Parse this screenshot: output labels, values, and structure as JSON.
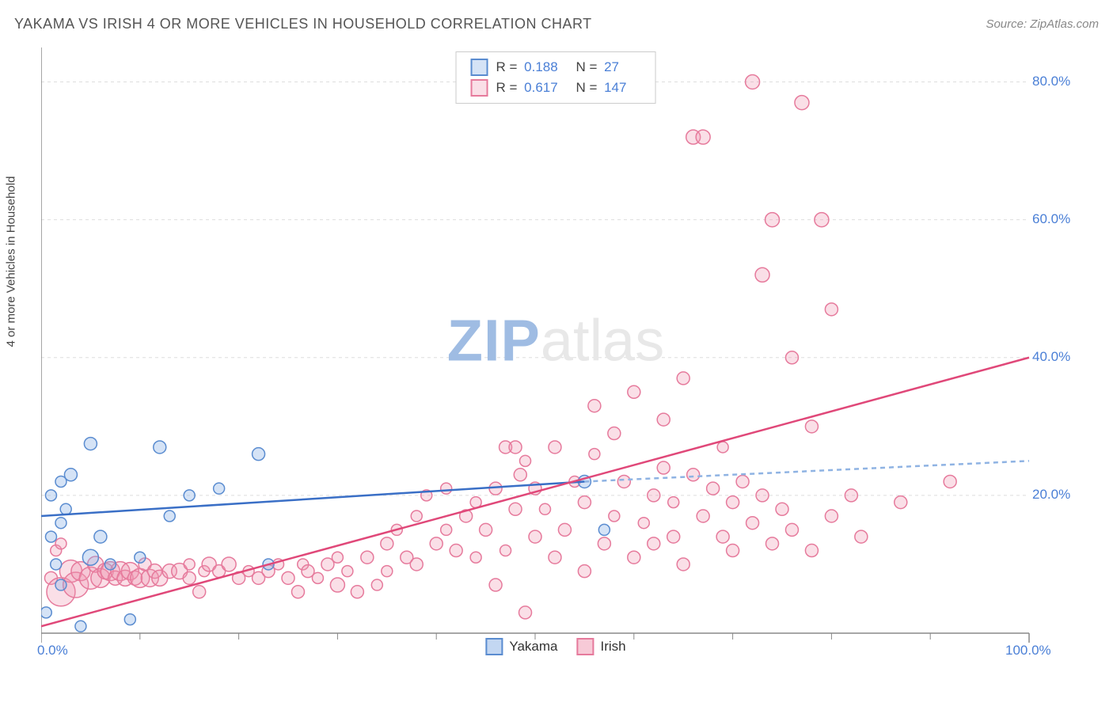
{
  "header": {
    "title": "YAKAMA VS IRISH 4 OR MORE VEHICLES IN HOUSEHOLD CORRELATION CHART",
    "source": "Source: ZipAtlas.com"
  },
  "chart": {
    "type": "scatter",
    "y_label": "4 or more Vehicles in Household",
    "xlim": [
      0,
      100
    ],
    "ylim": [
      0,
      85
    ],
    "x_ticks": [
      0,
      100
    ],
    "x_tick_labels": [
      "0.0%",
      "100.0%"
    ],
    "x_minor_ticks": [
      10,
      20,
      30,
      40,
      50,
      60,
      70,
      80,
      90
    ],
    "y_ticks": [
      20,
      40,
      60,
      80
    ],
    "y_tick_labels": [
      "20.0%",
      "40.0%",
      "60.0%",
      "80.0%"
    ],
    "grid_color": "#dddddd",
    "axis_color": "#888888",
    "background_color": "#ffffff",
    "axis_label_color": "#4a7fd6",
    "axis_label_fontsize": 17,
    "series": [
      {
        "name": "Yakama",
        "color_fill": "rgba(135,176,230,0.35)",
        "color_stroke": "#5a8cd0",
        "regression": {
          "x1": 0,
          "y1": 17,
          "x2": 55,
          "y2": 22,
          "x2_dash": 100,
          "y2_dash": 25,
          "solid_color": "#3a6fc6",
          "dash_color": "#8fb3e3",
          "width": 2.5
        },
        "R": "0.188",
        "N": "27",
        "points": [
          {
            "x": 1,
            "y": 20,
            "r": 7
          },
          {
            "x": 0.5,
            "y": 3,
            "r": 7
          },
          {
            "x": 1,
            "y": 14,
            "r": 7
          },
          {
            "x": 1.5,
            "y": 10,
            "r": 7
          },
          {
            "x": 2,
            "y": 22,
            "r": 7
          },
          {
            "x": 2,
            "y": 16,
            "r": 7
          },
          {
            "x": 2,
            "y": 7,
            "r": 7
          },
          {
            "x": 2.5,
            "y": 18,
            "r": 7
          },
          {
            "x": 3,
            "y": 23,
            "r": 8
          },
          {
            "x": 4,
            "y": 1,
            "r": 7
          },
          {
            "x": 5,
            "y": 27.5,
            "r": 8
          },
          {
            "x": 5,
            "y": 11,
            "r": 10
          },
          {
            "x": 6,
            "y": 14,
            "r": 8
          },
          {
            "x": 7,
            "y": 10,
            "r": 7
          },
          {
            "x": 9,
            "y": 2,
            "r": 7
          },
          {
            "x": 10,
            "y": 11,
            "r": 7
          },
          {
            "x": 12,
            "y": 27,
            "r": 8
          },
          {
            "x": 13,
            "y": 17,
            "r": 7
          },
          {
            "x": 15,
            "y": 20,
            "r": 7
          },
          {
            "x": 18,
            "y": 21,
            "r": 7
          },
          {
            "x": 22,
            "y": 26,
            "r": 8
          },
          {
            "x": 23,
            "y": 10,
            "r": 7
          },
          {
            "x": 55,
            "y": 22,
            "r": 8
          },
          {
            "x": 57,
            "y": 15,
            "r": 7
          }
        ]
      },
      {
        "name": "Irish",
        "color_fill": "rgba(240,150,175,0.30)",
        "color_stroke": "#e67a9c",
        "regression": {
          "x1": 0,
          "y1": 1,
          "x2": 100,
          "y2": 40,
          "solid_color": "#e04879",
          "width": 2.5
        },
        "R": "0.617",
        "N": "147",
        "points": [
          {
            "x": 1,
            "y": 8,
            "r": 8
          },
          {
            "x": 1.5,
            "y": 12,
            "r": 7
          },
          {
            "x": 2,
            "y": 6,
            "r": 18
          },
          {
            "x": 2,
            "y": 13,
            "r": 7
          },
          {
            "x": 3,
            "y": 9,
            "r": 14
          },
          {
            "x": 3.5,
            "y": 7,
            "r": 16
          },
          {
            "x": 4,
            "y": 9,
            "r": 12
          },
          {
            "x": 5,
            "y": 8,
            "r": 14
          },
          {
            "x": 5.5,
            "y": 10,
            "r": 10
          },
          {
            "x": 6,
            "y": 8,
            "r": 12
          },
          {
            "x": 6.5,
            "y": 9,
            "r": 10
          },
          {
            "x": 7,
            "y": 9,
            "r": 12
          },
          {
            "x": 7.5,
            "y": 8,
            "r": 9
          },
          {
            "x": 8,
            "y": 9,
            "r": 12
          },
          {
            "x": 8.5,
            "y": 8,
            "r": 10
          },
          {
            "x": 9,
            "y": 9,
            "r": 11
          },
          {
            "x": 9.5,
            "y": 8,
            "r": 9
          },
          {
            "x": 10,
            "y": 8,
            "r": 12
          },
          {
            "x": 10.5,
            "y": 10,
            "r": 8
          },
          {
            "x": 11,
            "y": 8,
            "r": 11
          },
          {
            "x": 11.5,
            "y": 9,
            "r": 9
          },
          {
            "x": 12,
            "y": 8,
            "r": 10
          },
          {
            "x": 13,
            "y": 9,
            "r": 9
          },
          {
            "x": 14,
            "y": 9,
            "r": 10
          },
          {
            "x": 15,
            "y": 8,
            "r": 8
          },
          {
            "x": 15,
            "y": 10,
            "r": 7
          },
          {
            "x": 16,
            "y": 6,
            "r": 8
          },
          {
            "x": 16.5,
            "y": 9,
            "r": 7
          },
          {
            "x": 17,
            "y": 10,
            "r": 9
          },
          {
            "x": 18,
            "y": 9,
            "r": 8
          },
          {
            "x": 19,
            "y": 10,
            "r": 9
          },
          {
            "x": 20,
            "y": 8,
            "r": 8
          },
          {
            "x": 21,
            "y": 9,
            "r": 7
          },
          {
            "x": 22,
            "y": 8,
            "r": 8
          },
          {
            "x": 23,
            "y": 9,
            "r": 8
          },
          {
            "x": 24,
            "y": 10,
            "r": 7
          },
          {
            "x": 25,
            "y": 8,
            "r": 8
          },
          {
            "x": 26,
            "y": 6,
            "r": 8
          },
          {
            "x": 26.5,
            "y": 10,
            "r": 7
          },
          {
            "x": 27,
            "y": 9,
            "r": 8
          },
          {
            "x": 28,
            "y": 8,
            "r": 7
          },
          {
            "x": 29,
            "y": 10,
            "r": 8
          },
          {
            "x": 30,
            "y": 7,
            "r": 9
          },
          {
            "x": 30,
            "y": 11,
            "r": 7
          },
          {
            "x": 31,
            "y": 9,
            "r": 7
          },
          {
            "x": 32,
            "y": 6,
            "r": 8
          },
          {
            "x": 33,
            "y": 11,
            "r": 8
          },
          {
            "x": 34,
            "y": 7,
            "r": 7
          },
          {
            "x": 35,
            "y": 13,
            "r": 8
          },
          {
            "x": 35,
            "y": 9,
            "r": 7
          },
          {
            "x": 36,
            "y": 15,
            "r": 7
          },
          {
            "x": 37,
            "y": 11,
            "r": 8
          },
          {
            "x": 38,
            "y": 17,
            "r": 7
          },
          {
            "x": 38,
            "y": 10,
            "r": 8
          },
          {
            "x": 39,
            "y": 20,
            "r": 7
          },
          {
            "x": 40,
            "y": 13,
            "r": 8
          },
          {
            "x": 41,
            "y": 15,
            "r": 7
          },
          {
            "x": 41,
            "y": 21,
            "r": 7
          },
          {
            "x": 42,
            "y": 12,
            "r": 8
          },
          {
            "x": 43,
            "y": 17,
            "r": 8
          },
          {
            "x": 44,
            "y": 11,
            "r": 7
          },
          {
            "x": 44,
            "y": 19,
            "r": 7
          },
          {
            "x": 45,
            "y": 15,
            "r": 8
          },
          {
            "x": 46,
            "y": 7,
            "r": 8
          },
          {
            "x": 46,
            "y": 21,
            "r": 8
          },
          {
            "x": 47,
            "y": 27,
            "r": 8
          },
          {
            "x": 47,
            "y": 12,
            "r": 7
          },
          {
            "x": 48,
            "y": 18,
            "r": 8
          },
          {
            "x": 48.5,
            "y": 23,
            "r": 8
          },
          {
            "x": 48,
            "y": 27,
            "r": 8
          },
          {
            "x": 49,
            "y": 3,
            "r": 8
          },
          {
            "x": 49,
            "y": 25,
            "r": 7
          },
          {
            "x": 50,
            "y": 14,
            "r": 8
          },
          {
            "x": 50,
            "y": 21,
            "r": 8
          },
          {
            "x": 51,
            "y": 18,
            "r": 7
          },
          {
            "x": 52,
            "y": 11,
            "r": 8
          },
          {
            "x": 52,
            "y": 27,
            "r": 8
          },
          {
            "x": 53,
            "y": 15,
            "r": 8
          },
          {
            "x": 54,
            "y": 22,
            "r": 7
          },
          {
            "x": 55,
            "y": 9,
            "r": 8
          },
          {
            "x": 55,
            "y": 19,
            "r": 8
          },
          {
            "x": 56,
            "y": 26,
            "r": 7
          },
          {
            "x": 56,
            "y": 33,
            "r": 8
          },
          {
            "x": 57,
            "y": 13,
            "r": 8
          },
          {
            "x": 58,
            "y": 17,
            "r": 7
          },
          {
            "x": 58,
            "y": 29,
            "r": 8
          },
          {
            "x": 59,
            "y": 22,
            "r": 8
          },
          {
            "x": 60,
            "y": 11,
            "r": 8
          },
          {
            "x": 60,
            "y": 35,
            "r": 8
          },
          {
            "x": 61,
            "y": 16,
            "r": 7
          },
          {
            "x": 62,
            "y": 20,
            "r": 8
          },
          {
            "x": 62,
            "y": 13,
            "r": 8
          },
          {
            "x": 63,
            "y": 24,
            "r": 8
          },
          {
            "x": 63,
            "y": 31,
            "r": 8
          },
          {
            "x": 64,
            "y": 14,
            "r": 8
          },
          {
            "x": 64,
            "y": 19,
            "r": 7
          },
          {
            "x": 65,
            "y": 37,
            "r": 8
          },
          {
            "x": 65,
            "y": 10,
            "r": 8
          },
          {
            "x": 66,
            "y": 23,
            "r": 8
          },
          {
            "x": 66,
            "y": 72,
            "r": 9
          },
          {
            "x": 67,
            "y": 17,
            "r": 8
          },
          {
            "x": 67,
            "y": 72,
            "r": 9
          },
          {
            "x": 68,
            "y": 21,
            "r": 8
          },
          {
            "x": 69,
            "y": 14,
            "r": 8
          },
          {
            "x": 69,
            "y": 27,
            "r": 7
          },
          {
            "x": 70,
            "y": 19,
            "r": 8
          },
          {
            "x": 70,
            "y": 12,
            "r": 8
          },
          {
            "x": 71,
            "y": 22,
            "r": 8
          },
          {
            "x": 72,
            "y": 80,
            "r": 9
          },
          {
            "x": 72,
            "y": 16,
            "r": 8
          },
          {
            "x": 73,
            "y": 52,
            "r": 9
          },
          {
            "x": 73,
            "y": 20,
            "r": 8
          },
          {
            "x": 74,
            "y": 60,
            "r": 9
          },
          {
            "x": 74,
            "y": 13,
            "r": 8
          },
          {
            "x": 75,
            "y": 18,
            "r": 8
          },
          {
            "x": 76,
            "y": 40,
            "r": 8
          },
          {
            "x": 76,
            "y": 15,
            "r": 8
          },
          {
            "x": 77,
            "y": 77,
            "r": 9
          },
          {
            "x": 78,
            "y": 12,
            "r": 8
          },
          {
            "x": 78,
            "y": 30,
            "r": 8
          },
          {
            "x": 79,
            "y": 60,
            "r": 9
          },
          {
            "x": 80,
            "y": 17,
            "r": 8
          },
          {
            "x": 80,
            "y": 47,
            "r": 8
          },
          {
            "x": 82,
            "y": 20,
            "r": 8
          },
          {
            "x": 83,
            "y": 14,
            "r": 8
          },
          {
            "x": 87,
            "y": 19,
            "r": 8
          },
          {
            "x": 92,
            "y": 22,
            "r": 8
          }
        ]
      }
    ],
    "legend_bottom": [
      {
        "label": "Yakama",
        "fill": "rgba(135,176,230,0.5)",
        "stroke": "#5a8cd0"
      },
      {
        "label": "Irish",
        "fill": "rgba(240,150,175,0.5)",
        "stroke": "#e67a9c"
      }
    ],
    "watermark": {
      "pre": "ZIP",
      "post": "atlas"
    }
  }
}
